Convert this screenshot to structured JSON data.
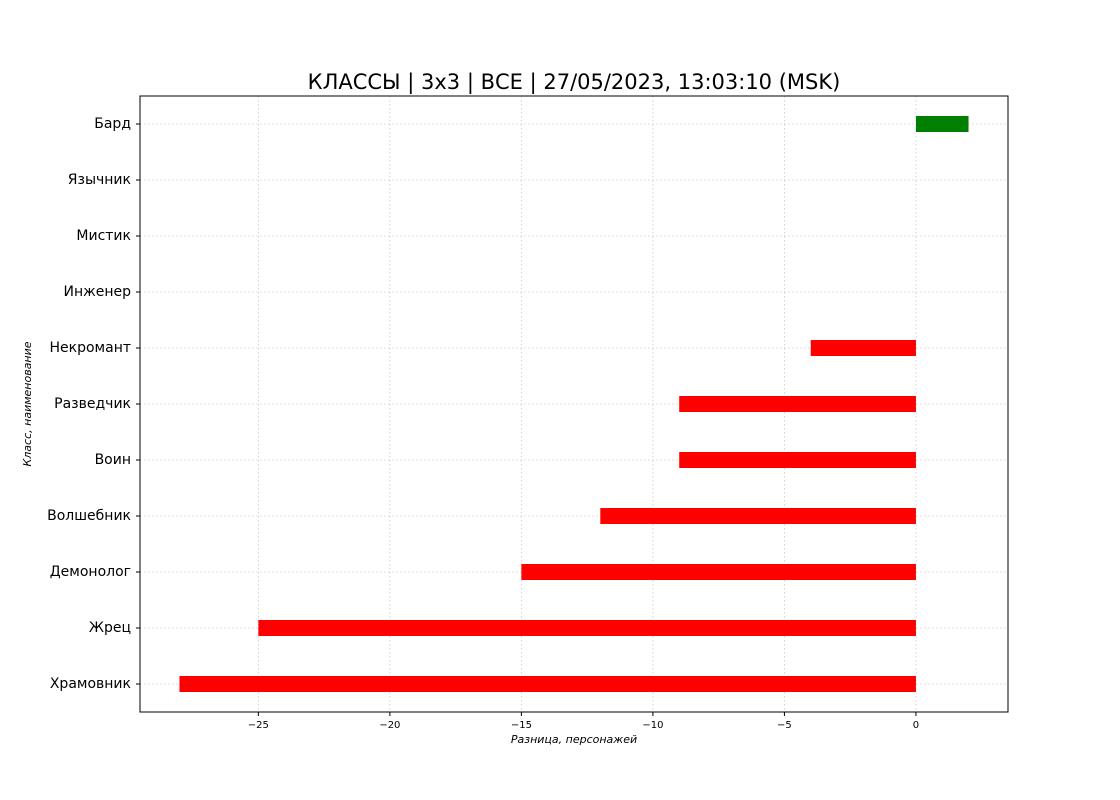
{
  "chart_data": {
    "type": "barh",
    "title": "КЛАССЫ | 3x3 | ВСЕ | 27/05/2023, 13:03:10 (MSK)",
    "xlabel": "Разница, персонажей",
    "ylabel": "Класс, наименование",
    "categories": [
      "Бард",
      "Язычник",
      "Мистик",
      "Инженер",
      "Некромант",
      "Разведчик",
      "Воин",
      "Волшебник",
      "Демонолог",
      "Жрец",
      "Храмовник"
    ],
    "values": [
      2,
      0,
      0,
      0,
      -4,
      -9,
      -9,
      -12,
      -15,
      -25,
      -28
    ],
    "positive_color": "#008000",
    "negative_color": "#ff0000",
    "xlim": [
      -29.5,
      3.5
    ],
    "xticks": [
      {
        "value": -25,
        "label": "−25"
      },
      {
        "value": -20,
        "label": "−20"
      },
      {
        "value": -15,
        "label": "−15"
      },
      {
        "value": -10,
        "label": "−10"
      },
      {
        "value": -5,
        "label": "−5"
      },
      0
    ],
    "grid": true
  }
}
